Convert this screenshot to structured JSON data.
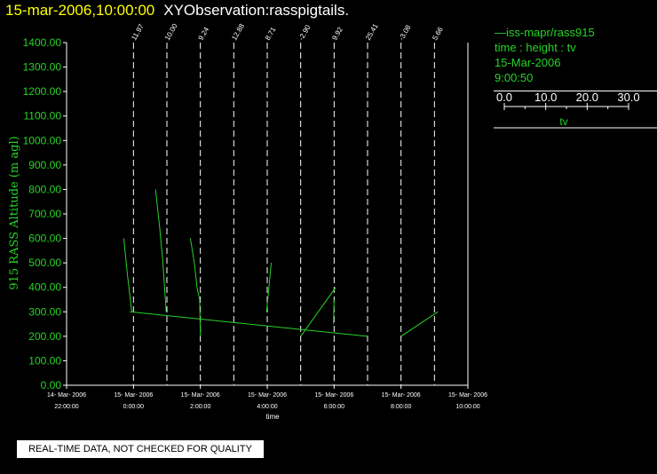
{
  "header": {
    "timestamp": "15-mar-2006,10:00:00",
    "title": "XYObservation:rasspigtails."
  },
  "legend": {
    "series": "—iss-mapr/rass915",
    "description": "time : height : tv",
    "date": "15-Mar-2006",
    "time": "9:00:50",
    "scale": {
      "ticks": [
        "0.0",
        "10.0",
        "20.0",
        "30.0"
      ],
      "label": "tv"
    }
  },
  "notice": "REAL-TIME DATA, NOT CHECKED FOR QUALITY",
  "colors": {
    "trace": "#27d327",
    "axis": "#ffffff",
    "timestamp": "#ffff00"
  },
  "chart_data": {
    "type": "line",
    "xlabel": "time",
    "ylabel": "915 RASS Altitude (m agl)",
    "ylim": [
      0,
      1400
    ],
    "xlim_hours": [
      -2,
      10
    ],
    "y_ticks": [
      "0.00",
      "100.00",
      "200.00",
      "300.00",
      "400.00",
      "500.00",
      "600.00",
      "700.00",
      "800.00",
      "900.00",
      "1000.00",
      "1100.00",
      "1200.00",
      "1300.00",
      "1400.00"
    ],
    "x_ticks": [
      {
        "hour": -2,
        "date": "14- Mar- 2006",
        "time": "22:00:00"
      },
      {
        "hour": 0,
        "date": "15- Mar- 2006",
        "time": "0:00:00"
      },
      {
        "hour": 2,
        "date": "15- Mar- 2006",
        "time": "2:00:00"
      },
      {
        "hour": 4,
        "date": "15- Mar- 2006",
        "time": "4:00:00"
      },
      {
        "hour": 6,
        "date": "15- Mar- 2006",
        "time": "6:00:00"
      },
      {
        "hour": 8,
        "date": "15- Mar- 2006",
        "time": "8:00:00"
      },
      {
        "hour": 10,
        "date": "15- Mar- 2006",
        "time": "10:00:00"
      }
    ],
    "reference_lines": [
      {
        "hour": 0,
        "label": "11.97"
      },
      {
        "hour": 1,
        "label": "10.00"
      },
      {
        "hour": 2,
        "label": "9.24"
      },
      {
        "hour": 3,
        "label": "12.88"
      },
      {
        "hour": 4,
        "label": "8.71"
      },
      {
        "hour": 5,
        "label": "-2.90"
      },
      {
        "hour": 6,
        "label": "9.92"
      },
      {
        "hour": 7,
        "label": "25.41"
      },
      {
        "hour": 8,
        "label": "-3.08"
      },
      {
        "hour": 9,
        "label": "5.66"
      }
    ],
    "series": [
      {
        "hour": 0,
        "points": [
          [
            -0.29,
            600
          ],
          [
            -0.18,
            450
          ],
          [
            -0.05,
            300
          ]
        ]
      },
      {
        "hour": 1,
        "points": [
          [
            -0.34,
            800
          ],
          [
            -0.22,
            650
          ],
          [
            -0.12,
            500
          ],
          [
            -0.02,
            300
          ]
        ]
      },
      {
        "hour": 2,
        "points": [
          [
            -0.3,
            600
          ],
          [
            -0.18,
            500
          ],
          [
            -0.1,
            400
          ],
          [
            -0.02,
            350
          ],
          [
            0,
            200
          ]
        ]
      },
      {
        "hour": 4,
        "points": [
          [
            -0.02,
            300
          ],
          [
            0.05,
            400
          ],
          [
            0.12,
            500
          ]
        ]
      },
      {
        "hour": 5,
        "points": [
          [
            -0.1,
            300
          ],
          [
            7.0,
            200
          ]
        ]
      },
      {
        "hour": 6,
        "points": [
          [
            5.0,
            200
          ],
          [
            6.05,
            400
          ]
        ]
      },
      {
        "hour": 6.01,
        "points": [
          [
            5.98,
            250
          ],
          [
            6.0,
            350
          ]
        ]
      },
      {
        "hour": 9,
        "points": [
          [
            8.0,
            200
          ],
          [
            9.1,
            300
          ]
        ]
      }
    ]
  }
}
